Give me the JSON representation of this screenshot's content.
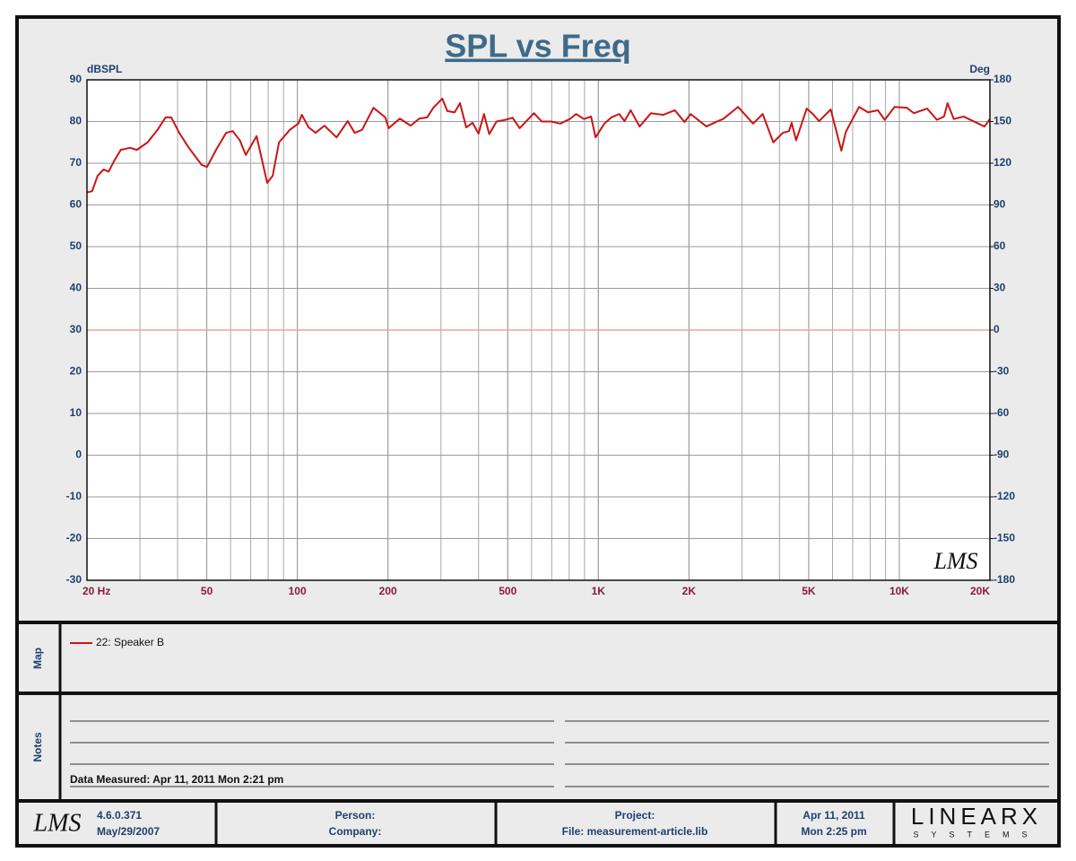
{
  "chart_data": {
    "type": "line",
    "title": "SPL vs Freq",
    "ylabel": "dBSPL",
    "y2label": "Deg",
    "x": [
      20,
      20.8,
      21.7,
      22.7,
      23.6,
      24.6,
      25.9,
      27.8,
      29.3,
      31.8,
      34.3,
      36.5,
      38.1,
      40.5,
      43.6,
      48.1,
      50.1,
      53.7,
      58,
      61,
      64.4,
      67.4,
      73.2,
      79.4,
      82.8,
      86.9,
      94.4,
      100.7,
      103.5,
      109,
      115,
      123,
      135,
      147,
      155,
      164,
      179,
      196,
      201,
      219,
      238,
      254,
      270,
      283,
      303,
      315,
      333,
      347,
      364,
      382,
      400,
      417,
      434,
      459,
      491,
      519,
      548,
      611,
      649,
      698,
      747,
      804,
      843,
      896,
      946,
      979,
      1047,
      1105,
      1174,
      1222,
      1281,
      1371,
      1496,
      1643,
      1795,
      1933,
      2026,
      2287,
      2461,
      2597,
      2913,
      3267,
      3517,
      3814,
      4104,
      4301,
      4388,
      4540,
      4925,
      5162,
      5413,
      5918,
      6419,
      6640,
      6915,
      7350,
      7872,
      8483,
      8950,
      9639,
      10590,
      11180,
      12380,
      13330,
      14080,
      14460,
      15170,
      16340,
      19190,
      20000
    ],
    "series": [
      {
        "name": "22: Speaker B",
        "color": "#cc1414",
        "values": [
          63,
          63.3,
          67,
          68.5,
          68,
          70.5,
          73.2,
          73.7,
          73.2,
          75,
          78,
          81,
          81,
          77.3,
          73.7,
          69.6,
          69.1,
          73.2,
          77.3,
          77.7,
          75.5,
          72,
          76.5,
          65.3,
          67,
          75,
          78,
          79.5,
          81.6,
          78.6,
          77.3,
          79,
          76.2,
          80.1,
          77.3,
          78,
          83.3,
          81,
          78.4,
          80.7,
          79,
          80.7,
          81,
          83.3,
          85.5,
          82.5,
          82.2,
          84.4,
          78.6,
          79.7,
          77.1,
          81.8,
          77,
          80,
          80.4,
          80.9,
          78.4,
          82,
          80,
          80,
          79.5,
          80.6,
          81.8,
          80.6,
          81.2,
          76.2,
          79.5,
          81,
          81.8,
          80.1,
          82.7,
          78.8,
          82,
          81.6,
          82.7,
          79.9,
          81.8,
          78.8,
          79.9,
          80.6,
          83.5,
          79.5,
          81.8,
          75,
          77.3,
          77.7,
          79.7,
          75.5,
          83.1,
          81.8,
          80.1,
          82.9,
          73,
          77.5,
          79.9,
          83.5,
          82.2,
          82.7,
          80.4,
          83.5,
          83.3,
          82,
          83.1,
          80.4,
          81.2,
          84.4,
          80.6,
          81.2,
          78.8,
          80.6
        ]
      }
    ],
    "xscale": "log",
    "xlim": [
      20,
      20000
    ],
    "xticks": [
      {
        "value": 20,
        "label": "20  Hz"
      },
      50,
      100,
      200,
      500,
      {
        "value": 1000,
        "label": "1K"
      },
      {
        "value": 2000,
        "label": "2K"
      },
      {
        "value": 5000,
        "label": "5K"
      },
      {
        "value": 10000,
        "label": "10K"
      },
      {
        "value": 20000,
        "label": "20K"
      }
    ],
    "ylim": [
      -30,
      90
    ],
    "yticks": [
      -30,
      -20,
      -10,
      0,
      10,
      20,
      30,
      40,
      50,
      60,
      70,
      80,
      90
    ],
    "y2lim": [
      -180,
      180
    ],
    "y2ticks": [
      -180,
      -150,
      -120,
      -90,
      -60,
      -30,
      0,
      30,
      60,
      90,
      120,
      150,
      180
    ],
    "grid": true,
    "minor_grid": true,
    "reference_line": {
      "axis": "y2",
      "value": 0,
      "color": "#f2a49c"
    }
  },
  "logo": "LMS",
  "map_label": "Map",
  "notes_label": "Notes",
  "notes": {
    "data_measured": "Data Measured: Apr 11, 2011  Mon  2:21 pm"
  },
  "footer": {
    "version": "4.6.0.371",
    "build_date": "May/29/2007",
    "person": "Person:",
    "company": "Company:",
    "project": "Project:",
    "file": "File: measurement-article.lib",
    "date": "Apr 11, 2011",
    "time": "Mon  2:25 pm",
    "brand": "LINEARX",
    "brand_sub": "SYSTEMS"
  }
}
